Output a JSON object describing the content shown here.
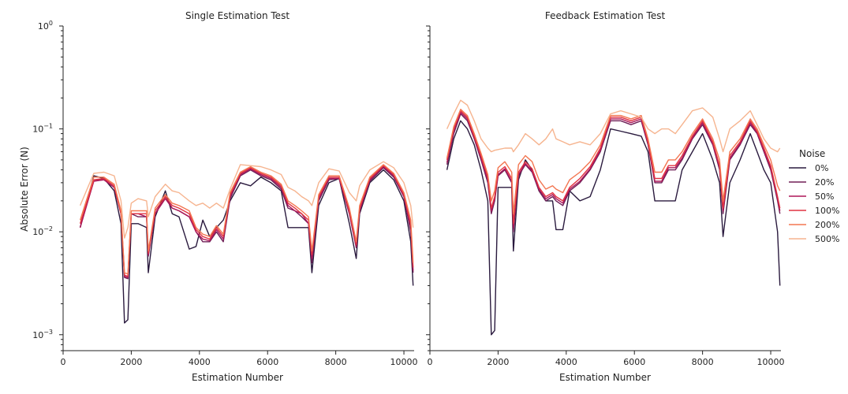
{
  "chart_data": [
    {
      "type": "line",
      "title": "Single Estimation Test",
      "xlabel": "Estimation Number",
      "ylabel": "Absolute Error (N)",
      "xlim": [
        0,
        10300
      ],
      "ylim": [
        0.0007,
        1.0
      ],
      "yscale": "log",
      "grid": false,
      "xticks": [
        "0",
        "2000",
        "4000",
        "6000",
        "8000",
        "10000"
      ],
      "yticks": [
        {
          "value": 1.0,
          "base": "10",
          "exp": "0"
        },
        {
          "value": 0.1,
          "base": "10",
          "exp": "−1"
        },
        {
          "value": 0.01,
          "base": "10",
          "exp": "−2"
        },
        {
          "value": 0.001,
          "base": "10",
          "exp": "−3"
        }
      ],
      "x": [
        500,
        900,
        1200,
        1500,
        1700,
        1800,
        1900,
        2000,
        2200,
        2450,
        2500,
        2700,
        3000,
        3200,
        3400,
        3700,
        3900,
        4100,
        4300,
        4500,
        4700,
        4900,
        5200,
        5500,
        5800,
        6100,
        6400,
        6600,
        6800,
        7000,
        7200,
        7300,
        7500,
        7800,
        8100,
        8400,
        8600,
        8700,
        9000,
        9400,
        9700,
        10000,
        10200,
        10270
      ],
      "series": [
        {
          "name": "0%",
          "color": "#2a1a3e",
          "values": [
            0.011,
            0.035,
            0.033,
            0.025,
            0.012,
            0.0013,
            0.0014,
            0.012,
            0.012,
            0.011,
            0.004,
            0.014,
            0.025,
            0.015,
            0.014,
            0.0068,
            0.0072,
            0.013,
            0.009,
            0.011,
            0.013,
            0.02,
            0.03,
            0.028,
            0.034,
            0.03,
            0.025,
            0.011,
            0.011,
            0.011,
            0.011,
            0.004,
            0.018,
            0.03,
            0.033,
            0.012,
            0.0055,
            0.015,
            0.03,
            0.04,
            0.032,
            0.02,
            0.008,
            0.003
          ]
        },
        {
          "name": "20%",
          "color": "#701f57",
          "values": [
            0.011,
            0.032,
            0.032,
            0.027,
            0.015,
            0.0036,
            0.0035,
            0.015,
            0.014,
            0.014,
            0.0058,
            0.015,
            0.022,
            0.017,
            0.016,
            0.014,
            0.01,
            0.008,
            0.008,
            0.01,
            0.008,
            0.021,
            0.035,
            0.04,
            0.035,
            0.032,
            0.026,
            0.017,
            0.016,
            0.014,
            0.012,
            0.005,
            0.02,
            0.032,
            0.033,
            0.015,
            0.007,
            0.016,
            0.031,
            0.042,
            0.034,
            0.022,
            0.01,
            0.004
          ]
        },
        {
          "name": "50%",
          "color": "#ad1759",
          "values": [
            0.011,
            0.031,
            0.032,
            0.027,
            0.015,
            0.0037,
            0.0036,
            0.015,
            0.015,
            0.014,
            0.006,
            0.015,
            0.021,
            0.017,
            0.016,
            0.014,
            0.01,
            0.0085,
            0.0082,
            0.0105,
            0.0085,
            0.022,
            0.036,
            0.041,
            0.036,
            0.033,
            0.027,
            0.018,
            0.016,
            0.015,
            0.012,
            0.0055,
            0.021,
            0.033,
            0.033,
            0.015,
            0.0072,
            0.016,
            0.032,
            0.043,
            0.035,
            0.022,
            0.011,
            0.0042
          ]
        },
        {
          "name": "100%",
          "color": "#e13342",
          "values": [
            0.012,
            0.032,
            0.033,
            0.028,
            0.015,
            0.0038,
            0.0037,
            0.015,
            0.015,
            0.015,
            0.0062,
            0.016,
            0.022,
            0.018,
            0.017,
            0.015,
            0.0105,
            0.009,
            0.0085,
            0.011,
            0.009,
            0.023,
            0.037,
            0.042,
            0.037,
            0.034,
            0.028,
            0.019,
            0.017,
            0.015,
            0.013,
            0.006,
            0.022,
            0.034,
            0.034,
            0.016,
            0.0075,
            0.017,
            0.033,
            0.044,
            0.036,
            0.023,
            0.012,
            0.0045
          ]
        },
        {
          "name": "200%",
          "color": "#f37651",
          "values": [
            0.013,
            0.034,
            0.034,
            0.029,
            0.016,
            0.004,
            0.0039,
            0.016,
            0.016,
            0.016,
            0.0065,
            0.017,
            0.023,
            0.019,
            0.018,
            0.016,
            0.011,
            0.0095,
            0.009,
            0.0115,
            0.0095,
            0.024,
            0.038,
            0.043,
            0.038,
            0.035,
            0.029,
            0.02,
            0.018,
            0.016,
            0.014,
            0.0065,
            0.023,
            0.035,
            0.035,
            0.017,
            0.008,
            0.018,
            0.034,
            0.045,
            0.037,
            0.024,
            0.013,
            0.005
          ]
        },
        {
          "name": "500%",
          "color": "#f6b48f",
          "values": [
            0.018,
            0.037,
            0.038,
            0.035,
            0.02,
            0.0087,
            0.011,
            0.019,
            0.021,
            0.02,
            0.014,
            0.022,
            0.029,
            0.025,
            0.024,
            0.02,
            0.018,
            0.019,
            0.017,
            0.019,
            0.017,
            0.026,
            0.045,
            0.044,
            0.043,
            0.04,
            0.036,
            0.027,
            0.025,
            0.022,
            0.02,
            0.018,
            0.03,
            0.041,
            0.039,
            0.024,
            0.02,
            0.028,
            0.04,
            0.048,
            0.042,
            0.03,
            0.018,
            0.011
          ]
        }
      ]
    },
    {
      "type": "line",
      "title": "Feedback Estimation Test",
      "xlabel": "Estimation Number",
      "ylabel": "",
      "xlim": [
        0,
        10300
      ],
      "ylim": [
        0.0007,
        1.0
      ],
      "yscale": "log",
      "grid": false,
      "xticks": [
        "0",
        "2000",
        "4000",
        "6000",
        "8000",
        "10000"
      ],
      "x": [
        500,
        700,
        900,
        1100,
        1300,
        1500,
        1700,
        1800,
        1900,
        2000,
        2200,
        2400,
        2450,
        2600,
        2800,
        3000,
        3200,
        3400,
        3600,
        3700,
        3900,
        4100,
        4400,
        4700,
        5000,
        5300,
        5600,
        5900,
        6200,
        6400,
        6600,
        6800,
        7000,
        7200,
        7400,
        7700,
        8000,
        8300,
        8500,
        8600,
        8800,
        9100,
        9400,
        9600,
        9800,
        10000,
        10200,
        10270
      ],
      "series": [
        {
          "name": "0%",
          "color": "#2a1a3e",
          "values": [
            0.04,
            0.08,
            0.12,
            0.1,
            0.07,
            0.04,
            0.02,
            0.001,
            0.0011,
            0.027,
            0.027,
            0.027,
            0.0065,
            0.032,
            0.05,
            0.04,
            0.025,
            0.02,
            0.02,
            0.0105,
            0.0105,
            0.025,
            0.02,
            0.022,
            0.04,
            0.1,
            0.095,
            0.09,
            0.085,
            0.06,
            0.02,
            0.02,
            0.02,
            0.02,
            0.04,
            0.06,
            0.09,
            0.05,
            0.03,
            0.009,
            0.03,
            0.05,
            0.09,
            0.06,
            0.04,
            0.03,
            0.01,
            0.003
          ]
        },
        {
          "name": "20%",
          "color": "#701f57",
          "values": [
            0.045,
            0.09,
            0.14,
            0.12,
            0.08,
            0.05,
            0.03,
            0.015,
            0.02,
            0.035,
            0.04,
            0.03,
            0.01,
            0.035,
            0.045,
            0.038,
            0.025,
            0.02,
            0.022,
            0.02,
            0.018,
            0.025,
            0.03,
            0.04,
            0.06,
            0.12,
            0.12,
            0.11,
            0.12,
            0.07,
            0.03,
            0.03,
            0.04,
            0.04,
            0.05,
            0.08,
            0.11,
            0.07,
            0.04,
            0.015,
            0.05,
            0.07,
            0.11,
            0.09,
            0.06,
            0.04,
            0.02,
            0.015
          ]
        },
        {
          "name": "50%",
          "color": "#ad1759",
          "values": [
            0.047,
            0.095,
            0.145,
            0.125,
            0.082,
            0.052,
            0.032,
            0.016,
            0.021,
            0.036,
            0.041,
            0.031,
            0.011,
            0.036,
            0.046,
            0.039,
            0.026,
            0.021,
            0.023,
            0.021,
            0.019,
            0.026,
            0.031,
            0.041,
            0.062,
            0.125,
            0.125,
            0.115,
            0.125,
            0.072,
            0.031,
            0.031,
            0.042,
            0.042,
            0.052,
            0.082,
            0.115,
            0.072,
            0.042,
            0.016,
            0.052,
            0.072,
            0.115,
            0.092,
            0.062,
            0.042,
            0.021,
            0.016
          ]
        },
        {
          "name": "100%",
          "color": "#e13342",
          "values": [
            0.05,
            0.1,
            0.15,
            0.13,
            0.085,
            0.055,
            0.034,
            0.017,
            0.022,
            0.038,
            0.043,
            0.033,
            0.012,
            0.038,
            0.048,
            0.041,
            0.027,
            0.022,
            0.024,
            0.022,
            0.02,
            0.027,
            0.033,
            0.043,
            0.065,
            0.13,
            0.13,
            0.12,
            0.13,
            0.075,
            0.033,
            0.033,
            0.044,
            0.044,
            0.055,
            0.085,
            0.12,
            0.075,
            0.044,
            0.017,
            0.055,
            0.075,
            0.12,
            0.095,
            0.065,
            0.044,
            0.022,
            0.017
          ]
        },
        {
          "name": "200%",
          "color": "#f37651",
          "values": [
            0.052,
            0.105,
            0.155,
            0.135,
            0.09,
            0.058,
            0.036,
            0.02,
            0.025,
            0.042,
            0.048,
            0.038,
            0.015,
            0.045,
            0.055,
            0.048,
            0.032,
            0.026,
            0.028,
            0.026,
            0.024,
            0.032,
            0.038,
            0.048,
            0.07,
            0.135,
            0.135,
            0.125,
            0.135,
            0.08,
            0.038,
            0.038,
            0.05,
            0.05,
            0.06,
            0.09,
            0.125,
            0.08,
            0.05,
            0.02,
            0.06,
            0.08,
            0.125,
            0.1,
            0.07,
            0.05,
            0.028,
            0.025
          ]
        },
        {
          "name": "500%",
          "color": "#f6b48f",
          "values": [
            0.1,
            0.14,
            0.19,
            0.17,
            0.12,
            0.08,
            0.065,
            0.06,
            0.062,
            0.063,
            0.065,
            0.065,
            0.06,
            0.07,
            0.09,
            0.08,
            0.07,
            0.08,
            0.1,
            0.08,
            0.075,
            0.07,
            0.075,
            0.07,
            0.09,
            0.14,
            0.15,
            0.14,
            0.13,
            0.1,
            0.09,
            0.1,
            0.1,
            0.09,
            0.11,
            0.15,
            0.16,
            0.13,
            0.08,
            0.06,
            0.1,
            0.12,
            0.15,
            0.11,
            0.08,
            0.065,
            0.06,
            0.065
          ]
        }
      ]
    }
  ],
  "legend": {
    "title": "Noise",
    "placement": "right",
    "items": [
      {
        "label": "0%",
        "color": "#2a1a3e"
      },
      {
        "label": "20%",
        "color": "#701f57"
      },
      {
        "label": "50%",
        "color": "#ad1759"
      },
      {
        "label": "100%",
        "color": "#e13342"
      },
      {
        "label": "200%",
        "color": "#f37651"
      },
      {
        "label": "500%",
        "color": "#f6b48f"
      }
    ]
  }
}
